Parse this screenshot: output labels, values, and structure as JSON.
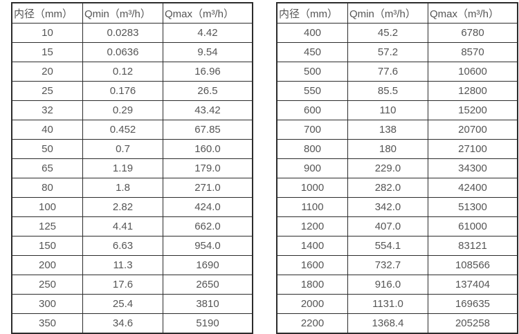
{
  "colors": {
    "background": "#ffffff",
    "border": "#2b2b2b",
    "text": "#555555"
  },
  "tables": [
    {
      "headers": [
        "内径（mm）",
        "Qmin（m³/h）",
        "Qmax（m³/h）"
      ],
      "rows": [
        [
          "10",
          "0.0283",
          "4.42"
        ],
        [
          "15",
          "0.0636",
          "9.54"
        ],
        [
          "20",
          "0.12",
          "16.96"
        ],
        [
          "25",
          "0.176",
          "26.5"
        ],
        [
          "32",
          "0.29",
          "43.42"
        ],
        [
          "40",
          "0.452",
          "67.85"
        ],
        [
          "50",
          "0.7",
          "160.0"
        ],
        [
          "65",
          "1.19",
          "179.0"
        ],
        [
          "80",
          "1.8",
          "271.0"
        ],
        [
          "100",
          "2.82",
          "424.0"
        ],
        [
          "125",
          "4.41",
          "662.0"
        ],
        [
          "150",
          "6.63",
          "954.0"
        ],
        [
          "200",
          "11.3",
          "1690"
        ],
        [
          "250",
          "17.6",
          "2650"
        ],
        [
          "300",
          "25.4",
          "3810"
        ],
        [
          "350",
          "34.6",
          "5190"
        ]
      ]
    },
    {
      "headers": [
        "内径（mm）",
        "Qmin（m³/h）",
        "Qmax（m³/h）"
      ],
      "rows": [
        [
          "400",
          "45.2",
          "6780"
        ],
        [
          "450",
          "57.2",
          "8570"
        ],
        [
          "500",
          "77.6",
          "10600"
        ],
        [
          "550",
          "85.5",
          "12800"
        ],
        [
          "600",
          "110",
          "15200"
        ],
        [
          "700",
          "138",
          "20700"
        ],
        [
          "800",
          "180",
          "27100"
        ],
        [
          "900",
          "229.0",
          "34300"
        ],
        [
          "1000",
          "282.0",
          "42400"
        ],
        [
          "1100",
          "342.0",
          "51300"
        ],
        [
          "1200",
          "407.0",
          "61000"
        ],
        [
          "1400",
          "554.1",
          "83121"
        ],
        [
          "1600",
          "732.7",
          "108566"
        ],
        [
          "1800",
          "916.0",
          "137404"
        ],
        [
          "2000",
          "1131.0",
          "169635"
        ],
        [
          "2200",
          "1368.4",
          "205258"
        ]
      ]
    }
  ]
}
